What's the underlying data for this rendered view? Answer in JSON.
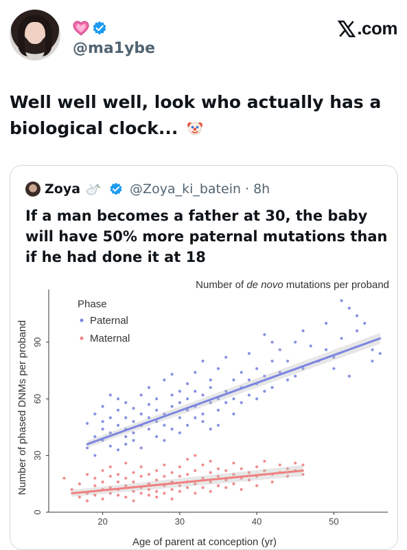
{
  "author": {
    "handle": "@ma1ybe",
    "emoji_badge": "heart-icon",
    "verified": true
  },
  "brand": {
    "label": "X.com"
  },
  "tweet": {
    "text": "Well well well, look who actually has a biological clock...",
    "trailing_emoji": "clown-icon"
  },
  "quote": {
    "name": "Zoya",
    "name_emoji": "dove-icon",
    "handle": "@Zoya_ki_batein",
    "separator": "·",
    "time": "8h",
    "text": "If a man becomes a father at 30, the baby will have 50% more paternal mutations than if he had done it at 18"
  },
  "colors": {
    "paternal": "#7b85e0",
    "maternal": "#ef8080",
    "verified": "#1d9bf0",
    "heart": "#f06aa8"
  },
  "chart_data": {
    "type": "scatter",
    "title": "Number of de novo mutations per proband",
    "title_parts": [
      "Number of ",
      "de novo",
      " mutations per proband"
    ],
    "xlabel": "Age of parent at conception (yr)",
    "ylabel": "Number of phased DNMs per proband",
    "xlim": [
      13,
      57
    ],
    "ylim": [
      0,
      115
    ],
    "xticks": [
      20,
      30,
      40,
      50
    ],
    "yticks": [
      0,
      30,
      60,
      90
    ],
    "legend": {
      "title": "Phase",
      "position": "top-left"
    },
    "grid": false,
    "series": [
      {
        "name": "Paternal",
        "trend": {
          "x": [
            18,
            56
          ],
          "y": [
            36,
            92
          ]
        },
        "points": [
          [
            18,
            34
          ],
          [
            18,
            47
          ],
          [
            19,
            40
          ],
          [
            19,
            52
          ],
          [
            19,
            30
          ],
          [
            20,
            44
          ],
          [
            20,
            56
          ],
          [
            20,
            38
          ],
          [
            20,
            48
          ],
          [
            21,
            62
          ],
          [
            21,
            35
          ],
          [
            21,
            50
          ],
          [
            21,
            42
          ],
          [
            22,
            60
          ],
          [
            22,
            46
          ],
          [
            22,
            33
          ],
          [
            22,
            54
          ],
          [
            23,
            40
          ],
          [
            23,
            58
          ],
          [
            23,
            44
          ],
          [
            23,
            50
          ],
          [
            23,
            36
          ],
          [
            24,
            48
          ],
          [
            24,
            42
          ],
          [
            24,
            55
          ],
          [
            24,
            38
          ],
          [
            25,
            62
          ],
          [
            25,
            46
          ],
          [
            25,
            52
          ],
          [
            25,
            34
          ],
          [
            26,
            57
          ],
          [
            26,
            44
          ],
          [
            26,
            66
          ],
          [
            26,
            50
          ],
          [
            27,
            48
          ],
          [
            27,
            40
          ],
          [
            27,
            60
          ],
          [
            27,
            54
          ],
          [
            28,
            70
          ],
          [
            28,
            46
          ],
          [
            28,
            52
          ],
          [
            28,
            38
          ],
          [
            29,
            62
          ],
          [
            29,
            56
          ],
          [
            29,
            44
          ],
          [
            29,
            73
          ],
          [
            30,
            50
          ],
          [
            30,
            64
          ],
          [
            30,
            42
          ],
          [
            30,
            58
          ],
          [
            31,
            54
          ],
          [
            31,
            68
          ],
          [
            31,
            46
          ],
          [
            31,
            60
          ],
          [
            32,
            74
          ],
          [
            32,
            56
          ],
          [
            32,
            50
          ],
          [
            32,
            64
          ],
          [
            33,
            62
          ],
          [
            33,
            52
          ],
          [
            33,
            80
          ],
          [
            33,
            48
          ],
          [
            34,
            58
          ],
          [
            34,
            66
          ],
          [
            34,
            44
          ],
          [
            34,
            70
          ],
          [
            35,
            60
          ],
          [
            35,
            54
          ],
          [
            35,
            76
          ],
          [
            35,
            46
          ],
          [
            36,
            64
          ],
          [
            36,
            58
          ],
          [
            36,
            82
          ],
          [
            37,
            60
          ],
          [
            37,
            70
          ],
          [
            37,
            52
          ],
          [
            38,
            66
          ],
          [
            38,
            74
          ],
          [
            38,
            58
          ],
          [
            39,
            62
          ],
          [
            39,
            84
          ],
          [
            39,
            70
          ],
          [
            40,
            76
          ],
          [
            40,
            60
          ],
          [
            40,
            68
          ],
          [
            41,
            94
          ],
          [
            41,
            72
          ],
          [
            41,
            64
          ],
          [
            42,
            80
          ],
          [
            42,
            90
          ],
          [
            42,
            66
          ],
          [
            43,
            74
          ],
          [
            43,
            86
          ],
          [
            44,
            70
          ],
          [
            44,
            80
          ],
          [
            45,
            72
          ],
          [
            45,
            90
          ],
          [
            46,
            76
          ],
          [
            47,
            88
          ],
          [
            48,
            80
          ],
          [
            49,
            86
          ],
          [
            50,
            82
          ],
          [
            50,
            76
          ],
          [
            51,
            112
          ],
          [
            51,
            92
          ],
          [
            52,
            72
          ],
          [
            53,
            104
          ],
          [
            53,
            96
          ],
          [
            54,
            100
          ],
          [
            55,
            86
          ],
          [
            55,
            80
          ],
          [
            56,
            84
          ],
          [
            49,
            100
          ],
          [
            52,
            108
          ],
          [
            46,
            96
          ]
        ]
      },
      {
        "name": "Maternal",
        "trend": {
          "x": [
            16,
            46
          ],
          "y": [
            10,
            22
          ]
        },
        "points": [
          [
            15,
            18
          ],
          [
            16,
            12
          ],
          [
            17,
            8
          ],
          [
            17,
            15
          ],
          [
            18,
            10
          ],
          [
            18,
            20
          ],
          [
            18,
            6
          ],
          [
            19,
            14
          ],
          [
            19,
            9
          ],
          [
            19,
            18
          ],
          [
            20,
            12
          ],
          [
            20,
            22
          ],
          [
            20,
            7
          ],
          [
            20,
            16
          ],
          [
            21,
            10
          ],
          [
            21,
            19
          ],
          [
            21,
            13
          ],
          [
            21,
            24
          ],
          [
            22,
            9
          ],
          [
            22,
            16
          ],
          [
            22,
            12
          ],
          [
            22,
            20
          ],
          [
            23,
            14
          ],
          [
            23,
            8
          ],
          [
            23,
            18
          ],
          [
            23,
            26
          ],
          [
            24,
            11
          ],
          [
            24,
            16
          ],
          [
            24,
            21
          ],
          [
            24,
            6
          ],
          [
            25,
            13
          ],
          [
            25,
            19
          ],
          [
            25,
            10
          ],
          [
            25,
            24
          ],
          [
            26,
            15
          ],
          [
            26,
            9
          ],
          [
            26,
            20
          ],
          [
            26,
            12
          ],
          [
            27,
            17
          ],
          [
            27,
            22
          ],
          [
            27,
            11
          ],
          [
            27,
            8
          ],
          [
            28,
            14
          ],
          [
            28,
            19
          ],
          [
            28,
            25
          ],
          [
            28,
            10
          ],
          [
            29,
            16
          ],
          [
            29,
            12
          ],
          [
            29,
            21
          ],
          [
            29,
            7
          ],
          [
            30,
            14
          ],
          [
            30,
            19
          ],
          [
            30,
            24
          ],
          [
            30,
            11
          ],
          [
            31,
            16
          ],
          [
            31,
            13
          ],
          [
            31,
            28
          ],
          [
            31,
            20
          ],
          [
            32,
            15
          ],
          [
            32,
            22
          ],
          [
            32,
            10
          ],
          [
            32,
            30
          ],
          [
            33,
            18
          ],
          [
            33,
            13
          ],
          [
            33,
            25
          ],
          [
            34,
            16
          ],
          [
            34,
            21
          ],
          [
            34,
            11
          ],
          [
            34,
            27
          ],
          [
            35,
            14
          ],
          [
            35,
            19
          ],
          [
            35,
            23
          ],
          [
            36,
            17
          ],
          [
            36,
            13
          ],
          [
            36,
            22
          ],
          [
            37,
            20
          ],
          [
            37,
            26
          ],
          [
            37,
            15
          ],
          [
            38,
            18
          ],
          [
            38,
            23
          ],
          [
            38,
            12
          ],
          [
            39,
            21
          ],
          [
            39,
            17
          ],
          [
            40,
            24
          ],
          [
            40,
            19
          ],
          [
            40,
            14
          ],
          [
            41,
            22
          ],
          [
            41,
            27
          ],
          [
            42,
            20
          ],
          [
            42,
            16
          ],
          [
            43,
            25
          ],
          [
            43,
            21
          ],
          [
            44,
            23
          ],
          [
            44,
            19
          ],
          [
            45,
            26
          ],
          [
            45,
            22
          ],
          [
            46,
            20
          ],
          [
            46,
            25
          ]
        ]
      }
    ]
  }
}
